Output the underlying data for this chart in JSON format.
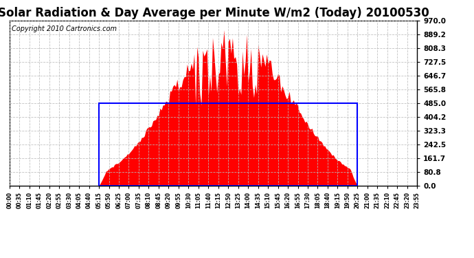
{
  "title": "Solar Radiation & Day Average per Minute W/m2 (Today) 20100530",
  "copyright": "Copyright 2010 Cartronics.com",
  "ymin": 0.0,
  "ymax": 970.0,
  "yticks": [
    0.0,
    80.8,
    161.7,
    242.5,
    323.3,
    404.2,
    485.0,
    565.8,
    646.7,
    727.5,
    808.3,
    889.2,
    970.0
  ],
  "day_avg": 485.0,
  "sunrise_idx": 63,
  "sunset_idx": 245,
  "peak_idx": 155,
  "total_points": 288,
  "bar_color": "#FF0000",
  "avg_line_color": "#0000FF",
  "background_color": "#FFFFFF",
  "grid_color": "#BBBBBB",
  "title_fontsize": 12,
  "copyright_fontsize": 7,
  "tick_interval": 7
}
